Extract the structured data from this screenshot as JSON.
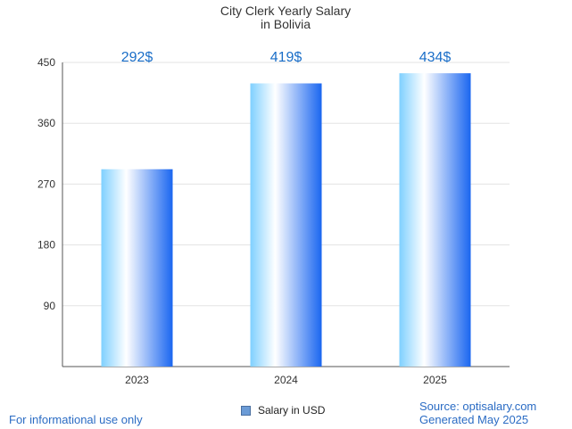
{
  "chart_data": {
    "type": "bar",
    "title": [
      "City Clerk Yearly Salary",
      "in Bolivia"
    ],
    "categories": [
      "2023",
      "2024",
      "2025"
    ],
    "series": [
      {
        "name": "Salary in USD",
        "values": [
          292,
          419,
          434
        ]
      }
    ],
    "data_labels": [
      "292$",
      "419$",
      "434$"
    ],
    "ylim": [
      0,
      450
    ],
    "yticks": [
      90,
      180,
      270,
      360,
      450
    ],
    "xlabel": "",
    "ylabel": "",
    "grid": true,
    "legend_position": "bottom-center",
    "colors": {
      "bar_edge": "#1a66f0",
      "bar_light": "#ffffff",
      "bar_sky": "#7fd0ff",
      "label": "#1a6ec8",
      "grid": "#e3e3e3",
      "axis": "#555555"
    }
  },
  "legend": {
    "label": "Salary in USD",
    "swatch_color": "#6b9bd6"
  },
  "footer": {
    "left_note": "For informational use only",
    "source": "Source: optisalary.com",
    "generated": "Generated May 2025"
  }
}
